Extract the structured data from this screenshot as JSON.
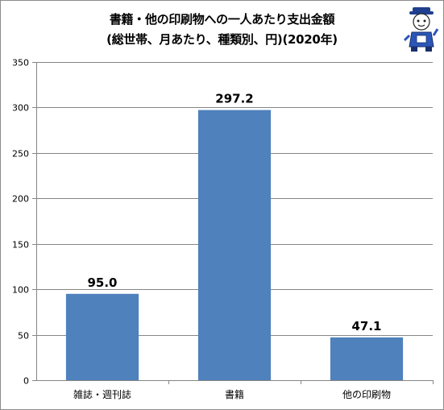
{
  "chart_data": {
    "type": "bar",
    "title_line1": "書籍・他の印刷物への一人あたり支出金額",
    "title_line2": "(総世帯、月あたり、種類別、円)(2020年)",
    "categories": [
      "雑誌・週刊誌",
      "書籍",
      "他の印刷物"
    ],
    "values": [
      95.0,
      297.2,
      47.1
    ],
    "data_labels": [
      "95.0",
      "297.2",
      "47.1"
    ],
    "ylim": [
      0,
      350
    ],
    "yticks": [
      0,
      50,
      100,
      150,
      200,
      250,
      300,
      350
    ],
    "grid": true,
    "legend": "none",
    "bar_color": "#4f81bd",
    "grid_color": "#868686"
  },
  "mascot": {
    "icon": "mascot-character-icon"
  }
}
